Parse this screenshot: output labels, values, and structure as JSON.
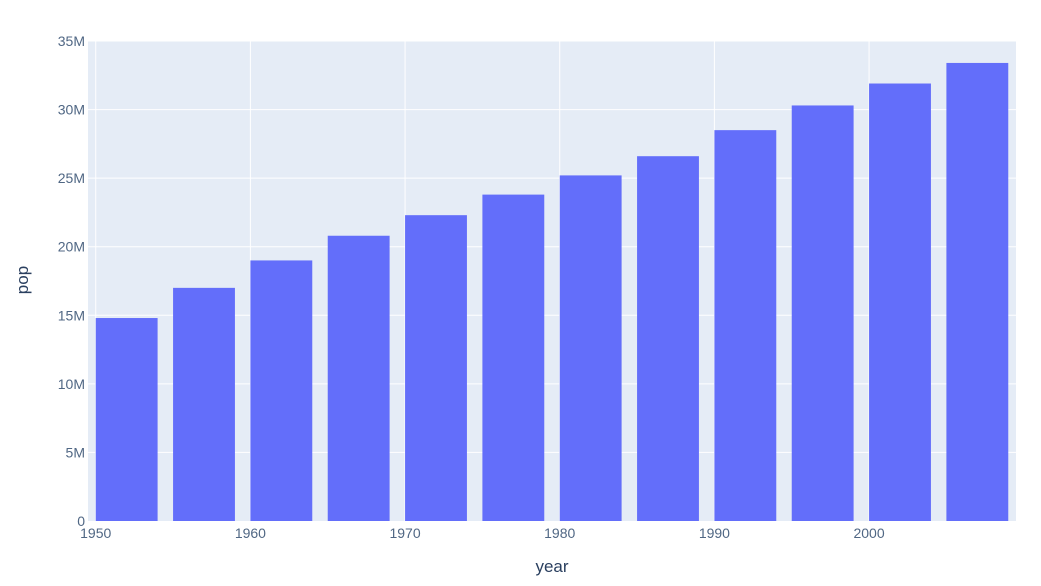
{
  "chart_data": {
    "type": "bar",
    "x": [
      1952,
      1957,
      1962,
      1967,
      1972,
      1977,
      1982,
      1987,
      1992,
      1997,
      2002,
      2007
    ],
    "values": [
      14800000,
      17000000,
      19000000,
      20800000,
      22300000,
      23800000,
      25200000,
      26600000,
      28500000,
      30300000,
      31900000,
      33400000
    ],
    "xlabel": "year",
    "ylabel": "pop",
    "xlim": [
      1949.5,
      2009.5
    ],
    "ylim": [
      0,
      35000000
    ],
    "x_ticks": [
      1950,
      1960,
      1970,
      1980,
      1990,
      2000
    ],
    "y_ticks": [
      0,
      5000000,
      10000000,
      15000000,
      20000000,
      25000000,
      30000000,
      35000000
    ],
    "y_tick_labels": [
      "0",
      "5M",
      "10M",
      "15M",
      "20M",
      "25M",
      "30M",
      "35M"
    ],
    "grid": true,
    "colors": {
      "bar": "#636efa",
      "plot_background": "#e5ecf6",
      "gridline": "#ffffff"
    }
  }
}
